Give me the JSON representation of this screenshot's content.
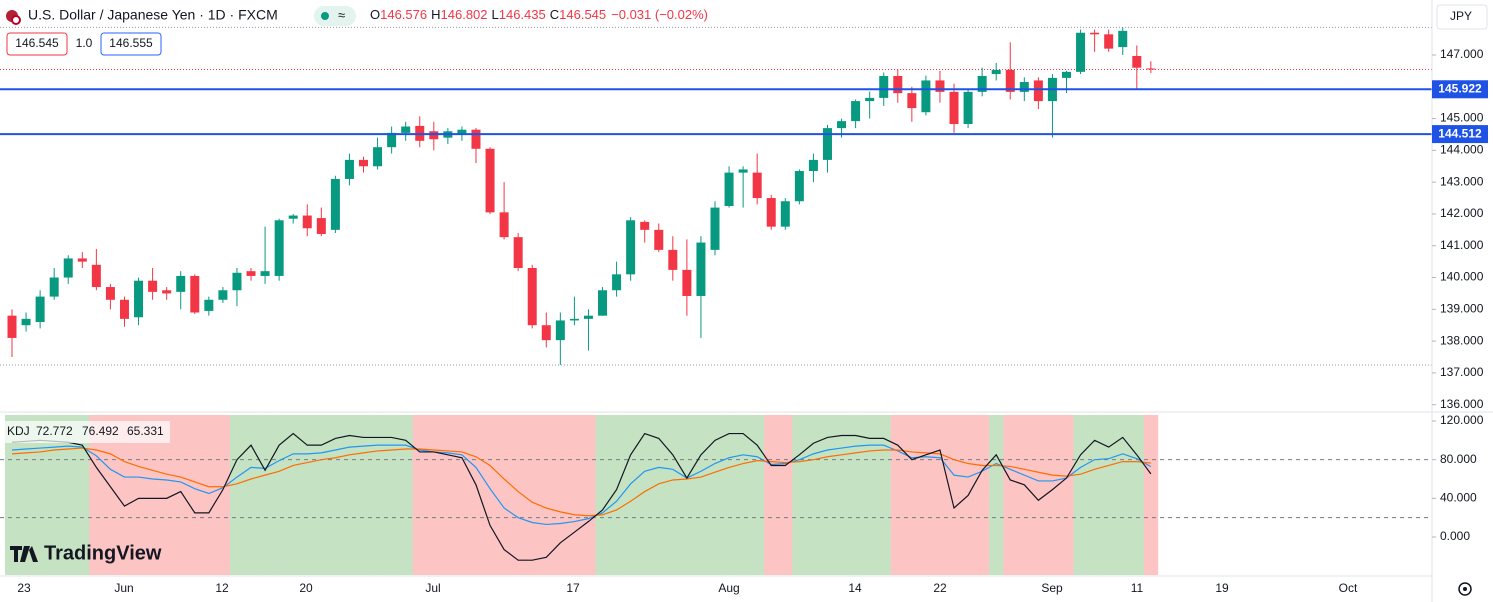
{
  "header": {
    "symbol": "U.S. Dollar / Japanese Yen · 1D · FXCM",
    "o": "O",
    "h": "H",
    "l": "L",
    "c": "C",
    "change": "−0.031 (−0.02%)",
    "sell": 146.545,
    "qty": "1.0",
    "buy": 146.555,
    "currency": "JPY",
    "logo": "TradingView"
  },
  "chart_data": [
    {
      "type": "candlestick",
      "color_up": "#089981",
      "color_down": "#f23645",
      "open": [
        138.8,
        138.5,
        138.6,
        139.4,
        140.0,
        140.6,
        140.4,
        139.7,
        139.3,
        138.75,
        139.9,
        139.6,
        139.55,
        140.05,
        138.95,
        139.3,
        139.6,
        140.2,
        140.05,
        140.05,
        141.85,
        141.95,
        141.87,
        141.5,
        143.1,
        143.7,
        143.5,
        144.1,
        144.55,
        144.77,
        144.6,
        144.4,
        144.5,
        144.65,
        144.05,
        142.05,
        141.27,
        140.3,
        138.5,
        138.03,
        138.65,
        138.7,
        138.8,
        139.6,
        140.1,
        141.75,
        141.5,
        140.87,
        140.24,
        139.42,
        140.87,
        142.25,
        143.3,
        143.3,
        142.5,
        141.6,
        142.4,
        143.35,
        143.7,
        144.7,
        144.92,
        145.55,
        145.65,
        146.34,
        145.8,
        145.2,
        146.2,
        145.84,
        144.83,
        145.84,
        146.4,
        146.53,
        145.84,
        146.2,
        145.55,
        146.28,
        146.47,
        147.7,
        147.65,
        147.25,
        146.97,
        146.576
      ],
      "high": [
        139.0,
        138.9,
        139.6,
        140.3,
        140.7,
        140.8,
        140.9,
        139.8,
        139.4,
        140.0,
        140.3,
        139.7,
        140.2,
        140.1,
        139.4,
        139.7,
        140.3,
        140.3,
        141.6,
        141.85,
        142.0,
        142.3,
        142.2,
        143.2,
        143.9,
        143.8,
        144.4,
        144.75,
        144.9,
        145.07,
        144.9,
        144.7,
        144.75,
        144.7,
        144.1,
        143.0,
        141.4,
        140.4,
        138.9,
        138.9,
        139.4,
        139.0,
        139.7,
        140.5,
        141.9,
        141.8,
        141.7,
        141.3,
        141.2,
        141.3,
        142.4,
        143.5,
        143.5,
        143.9,
        142.6,
        142.5,
        143.4,
        143.9,
        144.8,
        145.0,
        145.6,
        145.85,
        146.45,
        146.55,
        146.0,
        146.35,
        146.5,
        146.1,
        145.9,
        146.6,
        146.75,
        147.4,
        146.3,
        146.3,
        146.4,
        146.5,
        147.8,
        147.8,
        147.8,
        147.87,
        147.3,
        146.802
      ],
      "low": [
        137.5,
        138.3,
        138.4,
        139.3,
        139.8,
        140.3,
        139.6,
        139.0,
        138.45,
        138.5,
        139.3,
        139.3,
        139.0,
        138.85,
        138.8,
        139.2,
        139.1,
        139.9,
        139.8,
        139.9,
        141.7,
        141.3,
        141.3,
        141.4,
        142.9,
        143.3,
        143.4,
        143.9,
        144.3,
        144.1,
        144.0,
        144.2,
        144.3,
        143.6,
        142.0,
        141.2,
        140.2,
        138.4,
        137.8,
        137.25,
        138.5,
        137.7,
        138.8,
        139.4,
        139.9,
        141.1,
        140.8,
        139.9,
        138.8,
        138.1,
        140.7,
        142.2,
        142.2,
        142.3,
        141.5,
        141.5,
        142.3,
        143.0,
        143.3,
        144.4,
        144.7,
        145.0,
        145.4,
        145.5,
        144.9,
        145.1,
        145.5,
        144.55,
        144.7,
        145.7,
        146.2,
        145.6,
        145.55,
        145.3,
        144.4,
        145.8,
        146.4,
        147.1,
        147.1,
        147.0,
        145.9,
        146.435
      ],
      "close": [
        138.1,
        138.7,
        139.4,
        140.0,
        140.6,
        140.5,
        139.7,
        139.3,
        138.7,
        139.9,
        139.55,
        139.5,
        140.05,
        138.9,
        139.3,
        139.6,
        140.15,
        140.05,
        140.2,
        141.8,
        141.95,
        141.55,
        141.37,
        143.1,
        143.7,
        143.5,
        144.1,
        144.55,
        144.75,
        144.3,
        144.35,
        144.6,
        144.65,
        144.05,
        142.05,
        141.27,
        140.3,
        138.5,
        138.03,
        138.65,
        138.7,
        138.8,
        139.6,
        140.1,
        141.8,
        141.5,
        140.87,
        140.24,
        139.42,
        141.1,
        142.2,
        143.3,
        143.4,
        142.5,
        141.6,
        142.4,
        143.35,
        143.7,
        144.7,
        144.92,
        145.55,
        145.65,
        146.34,
        145.8,
        145.33,
        146.2,
        145.84,
        144.83,
        145.84,
        146.34,
        146.53,
        145.84,
        146.15,
        145.55,
        146.28,
        146.47,
        147.7,
        147.65,
        147.2,
        147.76,
        146.6,
        146.545
      ],
      "ylim": [
        135.77,
        148.73
      ],
      "yticks": [
        {
          "value": 136,
          "label": "136.000"
        },
        {
          "value": 137,
          "label": "137.000"
        },
        {
          "value": 138,
          "label": "138.000"
        },
        {
          "value": 139,
          "label": "139.000"
        },
        {
          "value": 140,
          "label": "140.000"
        },
        {
          "value": 141,
          "label": "141.000"
        },
        {
          "value": 142,
          "label": "142.000"
        },
        {
          "value": 143,
          "label": "143.000"
        },
        {
          "value": 144,
          "label": "144.000"
        },
        {
          "value": 145,
          "label": "145.000"
        },
        {
          "value": 146,
          "label": "146.000"
        },
        {
          "value": 147,
          "label": "147.000"
        }
      ],
      "hlines": [
        145.922,
        144.512
      ],
      "hline_color": "#1e53e5",
      "x_labels": [
        "23",
        "Jun",
        "12",
        "20",
        "Jul",
        "17",
        "Aug",
        "14",
        "22",
        "Sep",
        "11",
        "19",
        "Oct"
      ]
    },
    {
      "type": "line",
      "title": "KDJ",
      "zone_up": "#c5e3c3",
      "zone_down": "#fdc4c4",
      "series": [
        {
          "color": "#2196f3",
          "values": [
            90,
            91,
            92,
            93,
            94,
            93,
            84,
            70,
            62,
            62,
            60,
            59,
            57,
            50,
            45,
            51,
            62,
            72,
            71,
            79,
            86,
            86,
            87,
            90,
            93,
            94,
            95,
            95,
            95,
            90,
            88,
            87,
            85,
            72,
            50,
            30,
            20,
            15,
            13,
            14,
            16,
            19,
            25,
            37,
            55,
            68,
            72,
            70,
            61,
            68,
            76,
            82,
            85,
            83,
            75,
            76,
            80,
            86,
            90,
            92,
            94,
            95,
            95,
            89,
            82,
            83,
            82,
            64,
            62,
            68,
            76,
            70,
            64,
            58,
            58,
            61,
            72,
            80,
            81,
            86,
            81,
            72.772
          ]
        },
        {
          "color": "#ff6d00",
          "values": [
            86,
            87,
            88,
            90,
            91,
            92,
            90,
            86,
            78,
            73,
            69,
            65,
            62,
            57,
            52,
            52,
            55,
            60,
            64,
            68,
            74,
            77,
            80,
            82,
            85,
            87,
            89,
            90,
            91,
            91,
            90,
            89,
            88,
            83,
            74,
            60,
            47,
            36,
            30,
            26,
            23,
            22,
            23,
            28,
            37,
            47,
            55,
            59,
            60,
            62,
            67,
            72,
            76,
            79,
            78,
            77,
            78,
            80,
            83,
            85,
            87,
            89,
            90,
            90,
            88,
            87,
            86,
            80,
            76,
            74,
            74,
            73,
            70,
            67,
            64,
            63,
            65,
            70,
            74,
            78,
            78,
            76.492
          ]
        },
        {
          "color": "#131722",
          "values": [
            98,
            99,
            100,
            99,
            98,
            95,
            72,
            52,
            32,
            40,
            40,
            40,
            47,
            25,
            25,
            49,
            80,
            95,
            69,
            95,
            107,
            95,
            95,
            102,
            105,
            103,
            103,
            103,
            100,
            88,
            88,
            85,
            82,
            54,
            12,
            -13,
            -24,
            -24,
            -21,
            -6,
            5,
            16,
            28,
            49,
            85,
            107,
            102,
            85,
            61,
            85,
            100,
            107,
            107,
            95,
            74,
            74,
            85,
            97,
            103,
            105,
            105,
            102,
            102,
            95,
            80,
            85,
            90,
            30,
            43,
            69,
            85,
            59,
            54,
            38,
            49,
            61,
            85,
            100,
            93,
            103,
            85,
            65.331
          ]
        }
      ],
      "ylim": [
        -39.3,
        126.2
      ],
      "yticks": [
        {
          "value": 0,
          "label": "0.000"
        },
        {
          "value": 40,
          "label": "40.000"
        },
        {
          "value": 80,
          "label": "80.000"
        },
        {
          "value": 120,
          "label": "120.000"
        }
      ],
      "levels": [
        80,
        20
      ]
    }
  ]
}
